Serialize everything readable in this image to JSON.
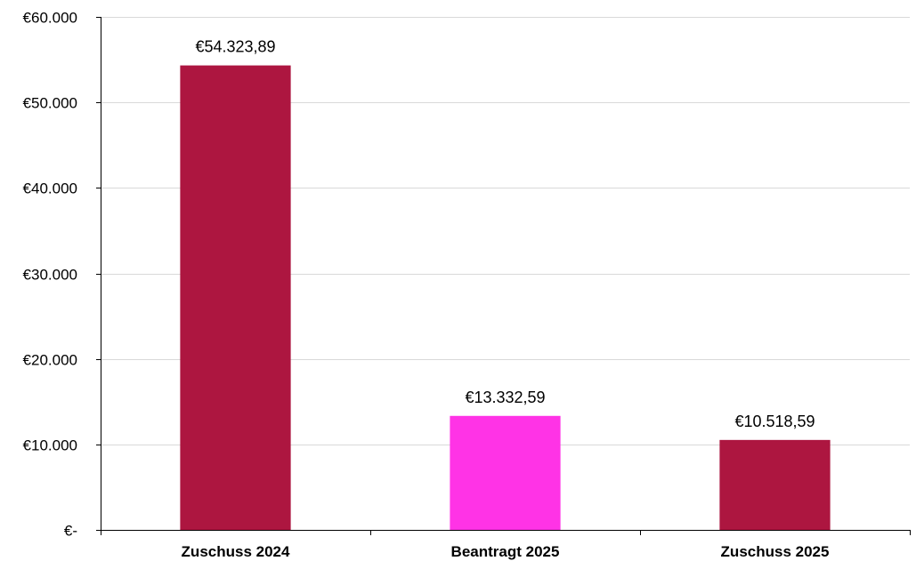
{
  "chart_data": {
    "type": "bar",
    "title": "",
    "xlabel": "",
    "ylabel": "",
    "categories": [
      "Zuschuss 2024",
      "Beantragt 2025",
      "Zuschuss 2025"
    ],
    "values": [
      54323.89,
      13332.59,
      10518.59
    ],
    "value_labels": [
      "€54.323,89",
      "€13.332,59",
      "€10.518,59"
    ],
    "bar_colors": [
      "#ad1640",
      "#ff33e6",
      "#ad1640"
    ],
    "ylim": [
      0,
      60000
    ],
    "yticks": [
      0,
      10000,
      20000,
      30000,
      40000,
      50000,
      60000
    ],
    "ytick_labels": [
      "€-",
      "€10.000",
      "€20.000",
      "€30.000",
      "€40.000",
      "€50.000",
      "€60.000"
    ],
    "grid": true,
    "gridline_color": "#d9d9d9",
    "axis_color": "#000000"
  }
}
